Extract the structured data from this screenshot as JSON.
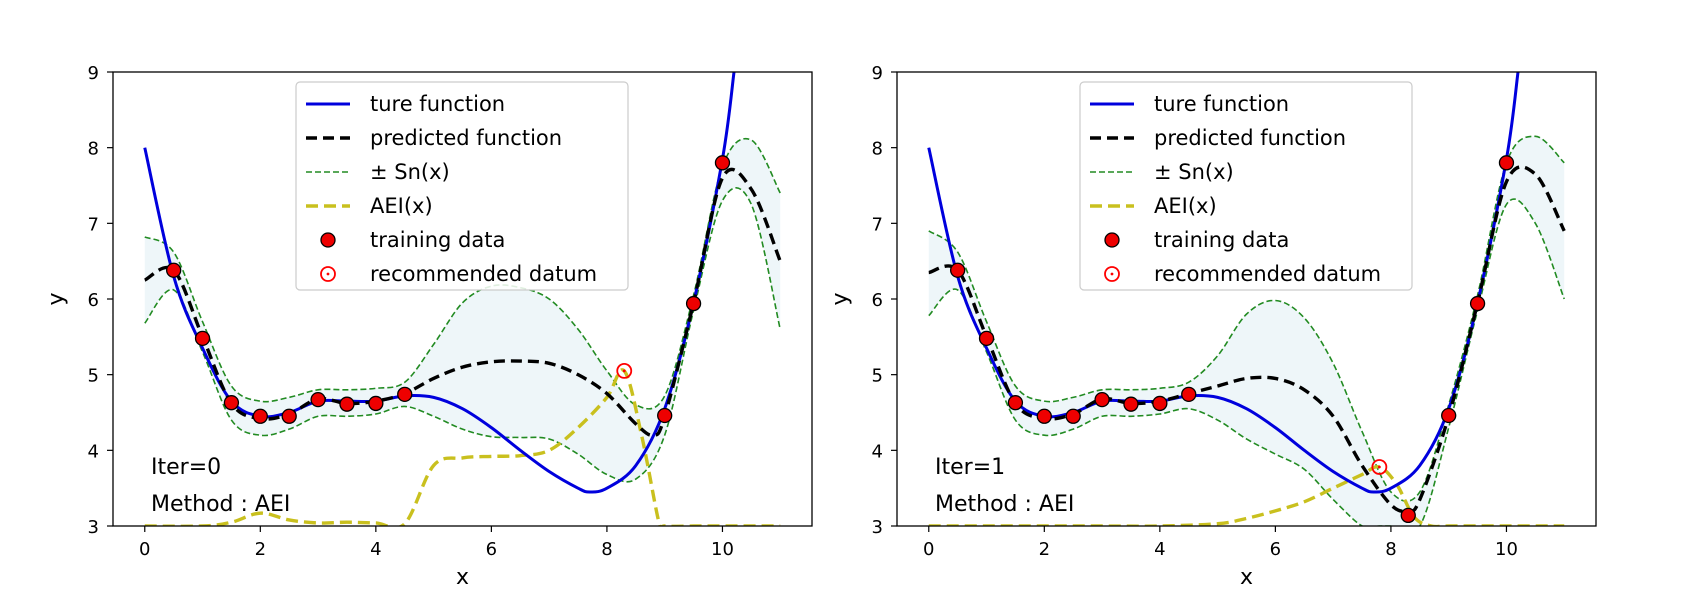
{
  "chart_data": [
    {
      "type": "line",
      "xlabel": "x",
      "ylabel": "y",
      "xlim": [
        -0.55,
        11.55
      ],
      "ylim": [
        3,
        9
      ],
      "xticks": [
        0,
        2,
        4,
        6,
        8,
        10
      ],
      "yticks": [
        3,
        4,
        5,
        6,
        7,
        8,
        9
      ],
      "grid": false,
      "legend_position": "top-center",
      "legend": [
        "ture function",
        "predicted function",
        " ± Sn(x)",
        "AEI(x)",
        "training data",
        "recommended datum"
      ],
      "annotations": [
        "Iter=0",
        "Method : AEI"
      ],
      "colors": {
        "true": "#0000dd",
        "pred": "#000000",
        "band": "#228b22",
        "fill": "#eef6f9",
        "aei": "#c9c01e",
        "train": "#ee0000",
        "rec": "#ff0000"
      },
      "series": [
        {
          "name": "ture function",
          "x": [
            0,
            0.5,
            1,
            1.5,
            2,
            2.5,
            3,
            3.5,
            4,
            4.5,
            5,
            5.5,
            6,
            6.5,
            7,
            7.5,
            7.7,
            8,
            8.5,
            9,
            9.5,
            10,
            10.2
          ],
          "y": [
            8.0,
            6.3,
            5.35,
            4.65,
            4.45,
            4.5,
            4.65,
            4.65,
            4.65,
            4.72,
            4.7,
            4.55,
            4.3,
            4.0,
            3.72,
            3.5,
            3.45,
            3.5,
            3.8,
            4.55,
            5.95,
            7.85,
            9.0
          ]
        },
        {
          "name": "predicted function",
          "x": [
            0,
            0.5,
            1,
            1.5,
            2,
            2.5,
            3,
            3.5,
            4,
            4.5,
            5,
            5.5,
            6,
            6.5,
            7,
            7.5,
            8,
            8.5,
            8.8,
            9,
            9.5,
            10,
            10.5,
            11
          ],
          "y": [
            6.25,
            6.38,
            5.5,
            4.62,
            4.42,
            4.48,
            4.68,
            4.62,
            4.65,
            4.75,
            4.95,
            5.1,
            5.17,
            5.18,
            5.15,
            5.0,
            4.75,
            4.35,
            4.2,
            4.45,
            5.95,
            7.6,
            7.45,
            6.5
          ]
        },
        {
          "name": " ± Sn(x)",
          "x": [
            0,
            0.5,
            1,
            1.5,
            2,
            2.5,
            3,
            3.5,
            4,
            4.5,
            5,
            5.5,
            6,
            6.5,
            7,
            7.5,
            8,
            8.5,
            9,
            9.5,
            10,
            10.5,
            11
          ],
          "y": [
            6.82,
            6.62,
            5.7,
            4.85,
            4.65,
            4.7,
            4.8,
            4.8,
            4.82,
            4.9,
            5.4,
            5.95,
            6.17,
            6.15,
            6.0,
            5.6,
            5.05,
            4.6,
            4.72,
            6.05,
            7.75,
            8.1,
            7.4
          ]
        },
        {
          "name": " ± Sn(x)",
          "x": [
            0,
            0.5,
            1,
            1.5,
            2,
            2.5,
            3,
            3.5,
            4,
            4.5,
            5,
            5.5,
            6,
            6.5,
            7,
            7.5,
            8,
            8.5,
            9,
            9.5,
            10,
            10.5,
            11
          ],
          "y": [
            5.68,
            6.12,
            5.3,
            4.4,
            4.2,
            4.28,
            4.45,
            4.45,
            4.48,
            4.58,
            4.45,
            4.28,
            4.18,
            4.17,
            4.15,
            3.95,
            3.68,
            3.62,
            4.2,
            5.85,
            7.3,
            7.25,
            5.6
          ]
        },
        {
          "name": "AEI(x)",
          "x": [
            0,
            1,
            1.5,
            2,
            2.5,
            3,
            3.5,
            4,
            4.5,
            5,
            5.5,
            6,
            6.5,
            7,
            7.5,
            8,
            8.3,
            8.6,
            8.9,
            9,
            9.5,
            10,
            11
          ],
          "y": [
            3.0,
            3.0,
            3.05,
            3.17,
            3.08,
            3.04,
            3.05,
            3.04,
            3.03,
            3.8,
            3.9,
            3.92,
            3.93,
            4.0,
            4.3,
            4.7,
            5.05,
            4.2,
            3.05,
            3.0,
            3.0,
            3.0,
            3.0
          ]
        }
      ],
      "training_data": {
        "x": [
          0.5,
          1,
          1.5,
          2,
          2.5,
          3,
          3.5,
          4,
          4.5,
          9,
          9.5,
          10
        ],
        "y": [
          6.38,
          5.48,
          4.63,
          4.45,
          4.45,
          4.67,
          4.61,
          4.62,
          4.74,
          4.46,
          5.94,
          7.8
        ]
      },
      "recommended_datum": {
        "x": 8.3,
        "y": 5.05
      }
    },
    {
      "type": "line",
      "xlabel": "x",
      "ylabel": "y",
      "xlim": [
        -0.55,
        11.55
      ],
      "ylim": [
        3,
        9
      ],
      "xticks": [
        0,
        2,
        4,
        6,
        8,
        10
      ],
      "yticks": [
        3,
        4,
        5,
        6,
        7,
        8,
        9
      ],
      "grid": false,
      "legend_position": "top-center",
      "legend": [
        "ture function",
        "predicted function",
        " ± Sn(x)",
        "AEI(x)",
        "training data",
        "recommended datum"
      ],
      "annotations": [
        "Iter=1",
        "Method : AEI"
      ],
      "colors": {
        "true": "#0000dd",
        "pred": "#000000",
        "band": "#228b22",
        "fill": "#eef6f9",
        "aei": "#c9c01e",
        "train": "#ee0000",
        "rec": "#ff0000"
      },
      "series": [
        {
          "name": "ture function",
          "x": [
            0,
            0.5,
            1,
            1.5,
            2,
            2.5,
            3,
            3.5,
            4,
            4.5,
            5,
            5.5,
            6,
            6.5,
            7,
            7.5,
            7.7,
            8,
            8.5,
            9,
            9.5,
            10,
            10.2
          ],
          "y": [
            8.0,
            6.3,
            5.35,
            4.65,
            4.45,
            4.5,
            4.65,
            4.65,
            4.65,
            4.72,
            4.7,
            4.55,
            4.3,
            4.0,
            3.72,
            3.5,
            3.45,
            3.5,
            3.8,
            4.55,
            5.95,
            7.85,
            9.0
          ]
        },
        {
          "name": "predicted function",
          "x": [
            0,
            0.5,
            1,
            1.5,
            2,
            2.5,
            3,
            3.5,
            4,
            4.5,
            5,
            5.5,
            6,
            6.5,
            7,
            7.5,
            8,
            8.3,
            8.5,
            9,
            9.5,
            10,
            10.5,
            11
          ],
          "y": [
            6.35,
            6.38,
            5.5,
            4.62,
            4.42,
            4.48,
            4.68,
            4.62,
            4.65,
            4.75,
            4.85,
            4.95,
            4.95,
            4.8,
            4.45,
            3.8,
            3.28,
            3.2,
            3.35,
            4.45,
            5.95,
            7.55,
            7.65,
            6.9
          ]
        },
        {
          "name": " ± Sn(x)",
          "x": [
            0,
            0.5,
            1,
            1.5,
            2,
            2.5,
            3,
            3.5,
            4,
            4.5,
            5,
            5.5,
            6,
            6.5,
            7,
            7.5,
            8,
            8.5,
            9,
            9.5,
            10,
            10.5,
            11
          ],
          "y": [
            6.9,
            6.62,
            5.7,
            4.85,
            4.65,
            4.7,
            4.8,
            4.8,
            4.82,
            4.9,
            5.25,
            5.8,
            5.98,
            5.75,
            5.15,
            4.25,
            3.45,
            3.45,
            4.6,
            6.05,
            7.8,
            8.15,
            7.8
          ]
        },
        {
          "name": " ± Sn(x)",
          "x": [
            0,
            0.5,
            1,
            1.5,
            2,
            2.5,
            3,
            3.5,
            4,
            4.5,
            5,
            5.5,
            6,
            6.5,
            7,
            7.5,
            7.8,
            8,
            8.5,
            9,
            9.5,
            10,
            10.5,
            11
          ],
          "y": [
            5.78,
            6.12,
            5.3,
            4.4,
            4.2,
            4.28,
            4.45,
            4.45,
            4.48,
            4.55,
            4.4,
            4.15,
            3.95,
            3.75,
            3.35,
            3.0,
            3.0,
            3.0,
            3.0,
            4.3,
            5.85,
            7.25,
            7.0,
            6.0
          ]
        },
        {
          "name": "AEI(x)",
          "x": [
            0,
            1,
            2,
            3,
            4,
            5,
            5.5,
            6,
            6.5,
            7,
            7.5,
            7.8,
            8.1,
            8.4,
            8.7,
            9,
            10,
            11
          ],
          "y": [
            3.0,
            3.0,
            3.0,
            3.0,
            3.0,
            3.03,
            3.1,
            3.2,
            3.32,
            3.5,
            3.68,
            3.78,
            3.55,
            3.12,
            3.0,
            3.0,
            3.0,
            3.0
          ]
        }
      ],
      "training_data": {
        "x": [
          0.5,
          1,
          1.5,
          2,
          2.5,
          3,
          3.5,
          4,
          4.5,
          8.3,
          9,
          9.5,
          10
        ],
        "y": [
          6.38,
          5.48,
          4.63,
          4.45,
          4.45,
          4.67,
          4.61,
          4.62,
          4.74,
          3.14,
          4.46,
          5.94,
          7.8
        ]
      },
      "recommended_datum": {
        "x": 7.8,
        "y": 3.78
      }
    }
  ]
}
